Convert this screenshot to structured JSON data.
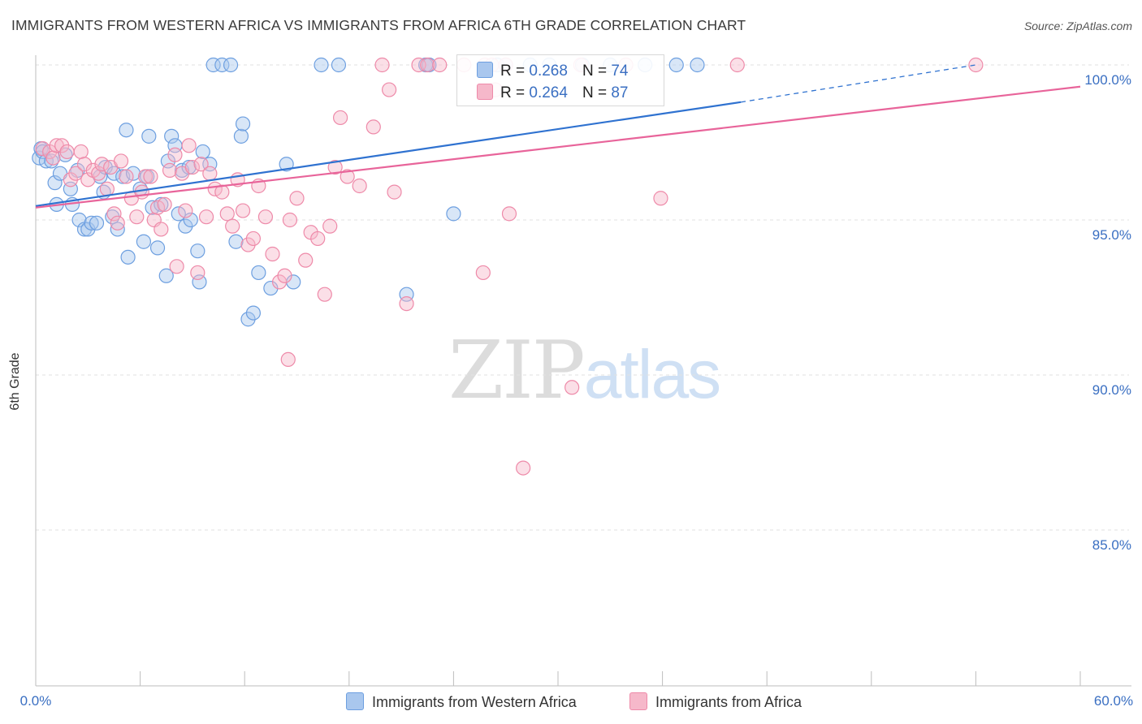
{
  "header": {
    "title": "IMMIGRANTS FROM WESTERN AFRICA VS IMMIGRANTS FROM AFRICA 6TH GRADE CORRELATION CHART",
    "source": "Source: ZipAtlas.com"
  },
  "watermark": {
    "zip": "ZIP",
    "atlas": "atlas"
  },
  "legend_box": {
    "rows": [
      {
        "r_label": "R =",
        "r_value": "0.268",
        "n_label": "N =",
        "n_value": "74",
        "color": "#a9c7ee"
      },
      {
        "r_label": "R =",
        "r_value": "0.264",
        "n_label": "N =",
        "n_value": "87",
        "color": "#f6b8ca"
      }
    ]
  },
  "chart_data": {
    "type": "scatter",
    "title": "IMMIGRANTS FROM WESTERN AFRICA VS IMMIGRANTS FROM AFRICA 6TH GRADE CORRELATION CHART",
    "xlabel": "",
    "ylabel": "6th Grade",
    "xlim": [
      0,
      60
    ],
    "ylim": [
      80.3,
      100.7
    ],
    "x_tick_labels": [
      "0.0%",
      "60.0%"
    ],
    "y_ticks": [
      85,
      90,
      95,
      100
    ],
    "y_tick_labels": [
      "85.0%",
      "90.0%",
      "95.0%",
      "100.0%"
    ],
    "grid": true,
    "legend_position": "bottom",
    "series": [
      {
        "name": "Immigrants from Western Africa",
        "color": "#6d9fe0",
        "fill": "#a9c7ee",
        "line_color": "#2f72d0",
        "trend": {
          "x0": 0,
          "y0": 95.45,
          "x1": 40.5,
          "y1": 98.8,
          "dashed_to_x": 54,
          "dashed_to_y": 100.0
        },
        "points": [
          [
            0.2,
            97.0
          ],
          [
            0.3,
            97.3
          ],
          [
            0.4,
            97.2
          ],
          [
            0.6,
            96.9
          ],
          [
            0.9,
            96.9
          ],
          [
            1.1,
            96.2
          ],
          [
            1.2,
            95.5
          ],
          [
            1.4,
            96.5
          ],
          [
            1.7,
            97.1
          ],
          [
            2.0,
            96.0
          ],
          [
            2.1,
            95.5
          ],
          [
            2.4,
            96.6
          ],
          [
            2.5,
            95.0
          ],
          [
            2.8,
            94.7
          ],
          [
            3.0,
            94.7
          ],
          [
            3.2,
            94.9
          ],
          [
            3.5,
            94.9
          ],
          [
            3.7,
            96.4
          ],
          [
            3.9,
            95.9
          ],
          [
            4.0,
            96.7
          ],
          [
            4.4,
            95.1
          ],
          [
            4.5,
            96.5
          ],
          [
            4.7,
            94.7
          ],
          [
            5.0,
            96.4
          ],
          [
            5.2,
            97.9
          ],
          [
            5.3,
            93.8
          ],
          [
            5.6,
            96.5
          ],
          [
            6.0,
            96.0
          ],
          [
            6.2,
            94.3
          ],
          [
            6.4,
            96.4
          ],
          [
            6.5,
            97.7
          ],
          [
            6.7,
            95.4
          ],
          [
            7.0,
            94.1
          ],
          [
            7.2,
            95.5
          ],
          [
            7.5,
            93.2
          ],
          [
            7.6,
            96.9
          ],
          [
            7.8,
            97.7
          ],
          [
            8.0,
            97.4
          ],
          [
            8.2,
            95.2
          ],
          [
            8.4,
            96.6
          ],
          [
            8.6,
            94.8
          ],
          [
            8.8,
            96.7
          ],
          [
            8.9,
            95.0
          ],
          [
            9.3,
            94.0
          ],
          [
            9.4,
            93.0
          ],
          [
            9.6,
            97.2
          ],
          [
            10.0,
            96.8
          ],
          [
            10.2,
            100.0
          ],
          [
            10.7,
            100.0
          ],
          [
            11.2,
            100.0
          ],
          [
            11.5,
            94.3
          ],
          [
            11.8,
            97.7
          ],
          [
            11.9,
            98.1
          ],
          [
            12.2,
            91.8
          ],
          [
            12.5,
            92.0
          ],
          [
            12.8,
            93.3
          ],
          [
            13.5,
            92.8
          ],
          [
            14.4,
            96.8
          ],
          [
            14.8,
            93.0
          ],
          [
            16.4,
            100.0
          ],
          [
            17.4,
            100.0
          ],
          [
            21.3,
            92.6
          ],
          [
            22.4,
            100.0
          ],
          [
            22.6,
            100.0
          ],
          [
            24.0,
            95.2
          ],
          [
            26.5,
            100.0
          ],
          [
            27.0,
            100.0
          ],
          [
            28.4,
            100.0
          ],
          [
            29.5,
            100.0
          ],
          [
            31.4,
            100.0
          ],
          [
            33.0,
            100.0
          ],
          [
            35.0,
            100.0
          ],
          [
            36.8,
            100.0
          ],
          [
            38.0,
            100.0
          ]
        ]
      },
      {
        "name": "Immigrants from Africa",
        "color": "#ee8aa9",
        "fill": "#f6b8ca",
        "line_color": "#e8649a",
        "trend": {
          "x0": 0,
          "y0": 95.4,
          "x1": 60,
          "y1": 99.3
        },
        "points": [
          [
            0.4,
            97.3
          ],
          [
            0.8,
            97.2
          ],
          [
            1.0,
            97.0
          ],
          [
            1.2,
            97.4
          ],
          [
            1.5,
            97.4
          ],
          [
            1.8,
            97.2
          ],
          [
            2.0,
            96.3
          ],
          [
            2.3,
            96.5
          ],
          [
            2.6,
            97.2
          ],
          [
            2.8,
            96.8
          ],
          [
            3.0,
            96.3
          ],
          [
            3.3,
            96.6
          ],
          [
            3.6,
            96.5
          ],
          [
            3.8,
            96.8
          ],
          [
            4.1,
            96.0
          ],
          [
            4.3,
            96.7
          ],
          [
            4.5,
            95.2
          ],
          [
            4.7,
            94.9
          ],
          [
            4.9,
            96.9
          ],
          [
            5.2,
            96.4
          ],
          [
            5.5,
            95.7
          ],
          [
            5.8,
            95.1
          ],
          [
            6.1,
            95.9
          ],
          [
            6.3,
            96.4
          ],
          [
            6.6,
            96.4
          ],
          [
            6.8,
            95.0
          ],
          [
            7.0,
            95.4
          ],
          [
            7.2,
            94.7
          ],
          [
            7.4,
            95.5
          ],
          [
            7.7,
            96.6
          ],
          [
            8.0,
            97.1
          ],
          [
            8.1,
            93.5
          ],
          [
            8.4,
            96.5
          ],
          [
            8.6,
            95.3
          ],
          [
            8.8,
            97.4
          ],
          [
            9.0,
            96.7
          ],
          [
            9.3,
            93.3
          ],
          [
            9.5,
            96.8
          ],
          [
            9.8,
            95.1
          ],
          [
            10.0,
            96.5
          ],
          [
            10.3,
            96.0
          ],
          [
            10.7,
            95.9
          ],
          [
            11.0,
            95.2
          ],
          [
            11.3,
            94.8
          ],
          [
            11.6,
            96.3
          ],
          [
            11.9,
            95.3
          ],
          [
            12.2,
            94.2
          ],
          [
            12.5,
            94.4
          ],
          [
            12.8,
            96.1
          ],
          [
            13.2,
            95.1
          ],
          [
            13.6,
            93.9
          ],
          [
            14.0,
            93.0
          ],
          [
            14.3,
            93.2
          ],
          [
            14.6,
            95.0
          ],
          [
            15.0,
            95.7
          ],
          [
            15.5,
            93.7
          ],
          [
            15.8,
            94.6
          ],
          [
            16.2,
            94.4
          ],
          [
            16.6,
            92.6
          ],
          [
            16.9,
            94.8
          ],
          [
            17.2,
            96.7
          ],
          [
            17.5,
            98.3
          ],
          [
            17.9,
            96.4
          ],
          [
            18.6,
            96.1
          ],
          [
            19.4,
            98.0
          ],
          [
            19.9,
            100.0
          ],
          [
            20.3,
            99.2
          ],
          [
            20.6,
            95.9
          ],
          [
            21.3,
            92.3
          ],
          [
            22.0,
            100.0
          ],
          [
            22.5,
            100.0
          ],
          [
            23.2,
            100.0
          ],
          [
            24.6,
            100.0
          ],
          [
            25.7,
            93.3
          ],
          [
            25.8,
            100.0
          ],
          [
            26.2,
            100.0
          ],
          [
            26.4,
            99.2
          ],
          [
            27.0,
            100.0
          ],
          [
            27.2,
            95.2
          ],
          [
            28.0,
            87.0
          ],
          [
            30.8,
            89.6
          ],
          [
            31.3,
            100.0
          ],
          [
            33.9,
            100.0
          ],
          [
            35.9,
            95.7
          ],
          [
            40.3,
            100.0
          ],
          [
            54.0,
            100.0
          ],
          [
            14.5,
            90.5
          ]
        ]
      }
    ]
  },
  "bottom_legend": [
    {
      "label": "Immigrants from Western Africa",
      "color": "#a9c7ee"
    },
    {
      "label": "Immigrants from Africa",
      "color": "#f6b8ca"
    }
  ]
}
